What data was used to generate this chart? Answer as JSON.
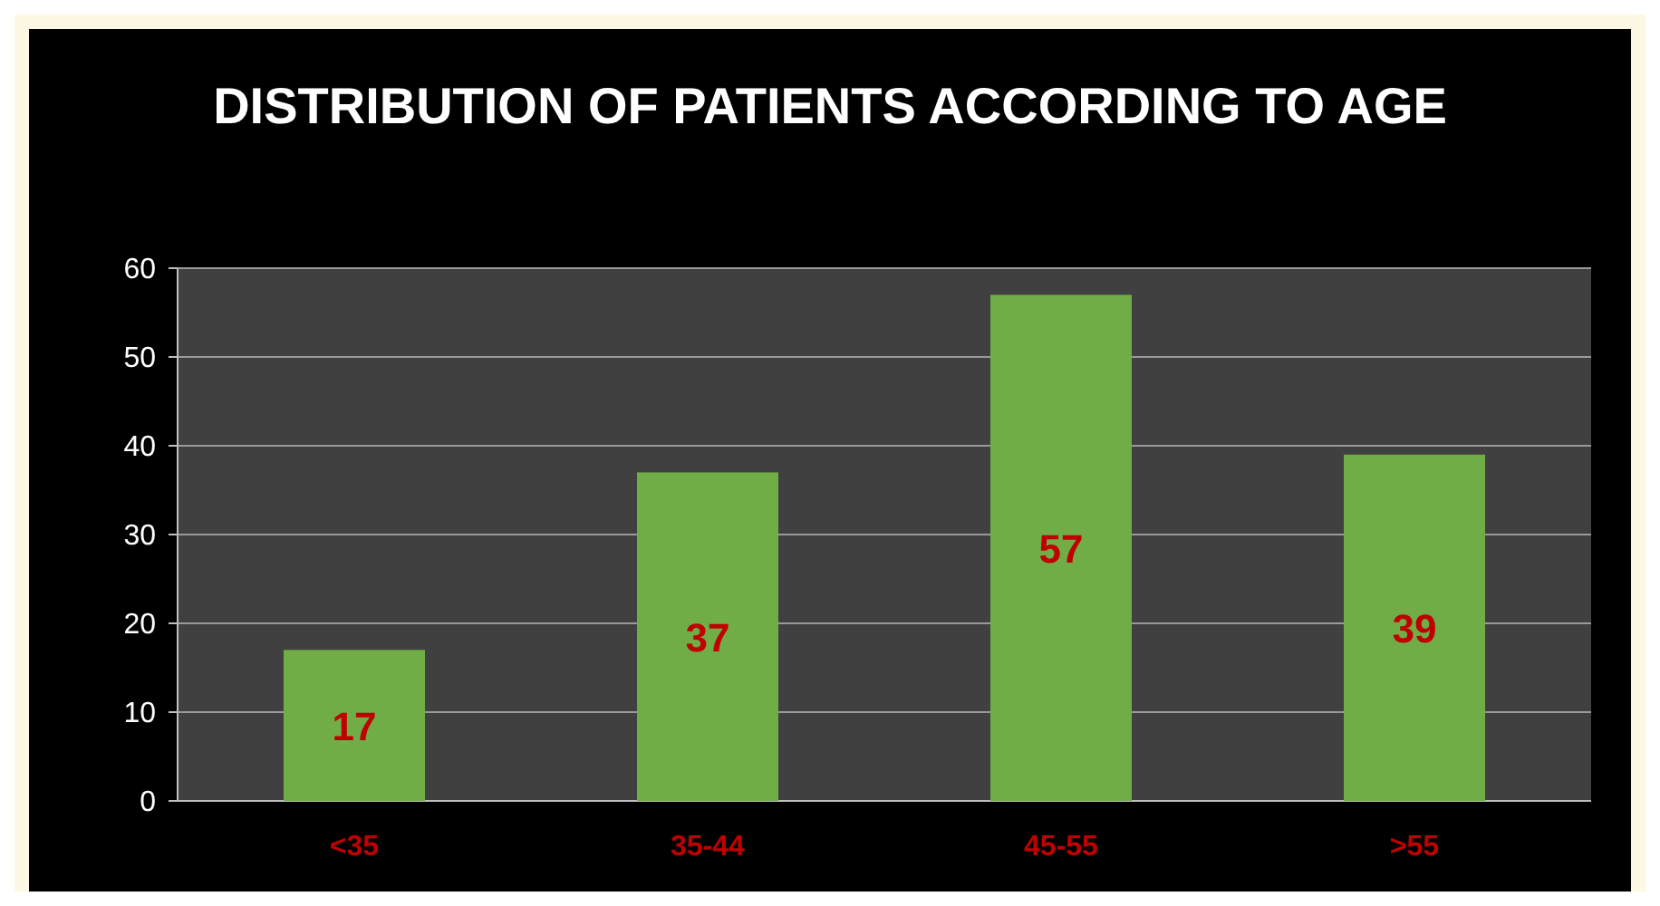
{
  "chart_data": {
    "type": "bar",
    "title": "DISTRIBUTION OF PATIENTS ACCORDING TO AGE",
    "categories": [
      "<35",
      "35-44",
      "45-55",
      ">55"
    ],
    "values": [
      17,
      37,
      57,
      39
    ],
    "color": "#70ad47",
    "ylim": [
      0,
      60
    ],
    "yticks": [
      0,
      10,
      20,
      30,
      40,
      50,
      60
    ],
    "grid": "y",
    "data_labels": true
  }
}
